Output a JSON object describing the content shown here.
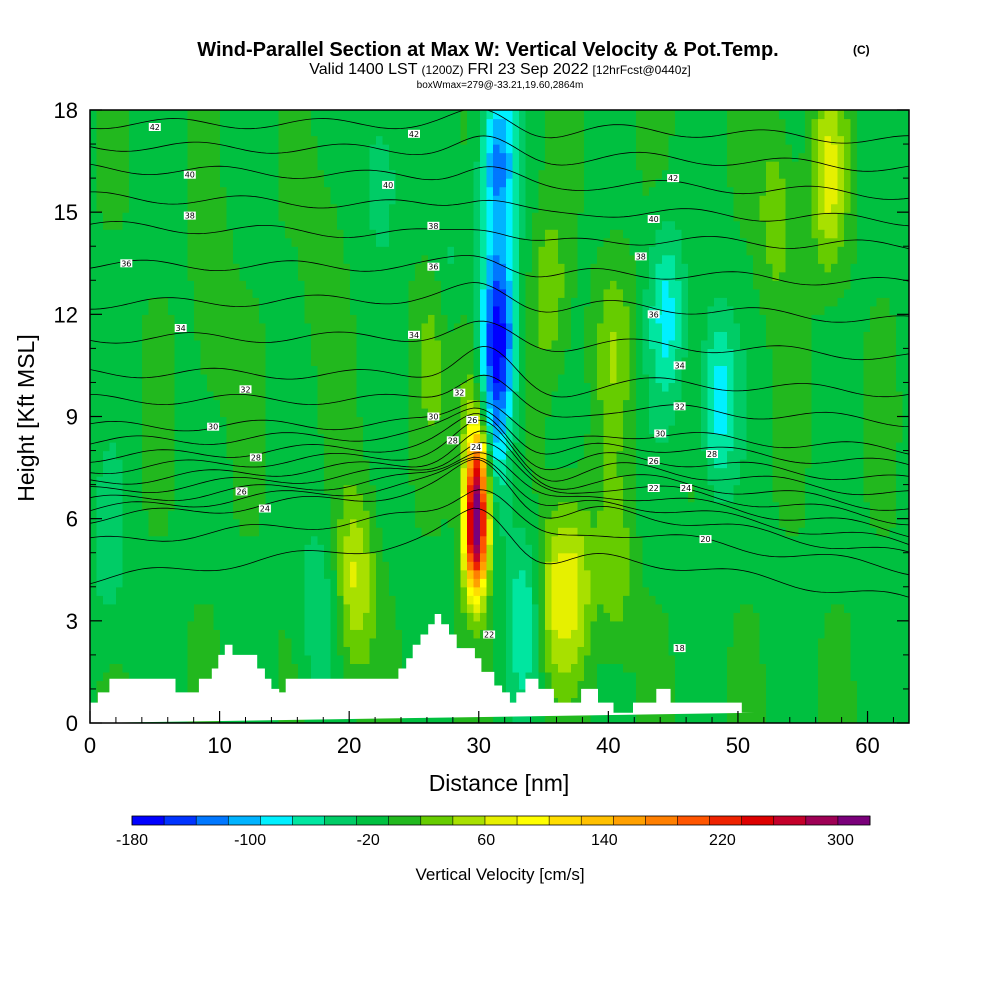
{
  "title": {
    "main": "Wind-Parallel Section at Max W: Vertical Velocity & Pot.Temp.",
    "suffix": "(C)",
    "sub_a": "Valid 1400 LST",
    "sub_b": "(1200Z)",
    "sub_c": "FRI 23 Sep 2022",
    "sub_d": "[12hrFcst@0440z]",
    "box": "boxWmax=279@-33.21,19.60,2864m"
  },
  "chart_data": {
    "type": "heatmap",
    "xlabel": "Distance [nm]",
    "ylabel": "Height [Kft MSL]",
    "xlim": [
      0,
      63.2
    ],
    "ylim": [
      0,
      18
    ],
    "x_ticks": [
      0,
      10,
      20,
      30,
      40,
      50,
      60
    ],
    "y_ticks": [
      0,
      3,
      6,
      9,
      12,
      15,
      18
    ],
    "x_tick_labels": [
      "0",
      "10",
      "20",
      "30",
      "40",
      "50",
      "60"
    ],
    "y_tick_labels": [
      "0",
      "3",
      "6",
      "9",
      "12",
      "15",
      "18"
    ],
    "field": "Vertical Velocity [cm/s]",
    "background_w": -10,
    "w_features": [
      {
        "x": 29.8,
        "z": 5.5,
        "w": 280
      },
      {
        "x": 29.9,
        "z": 7.5,
        "w": 180
      },
      {
        "x": 29.3,
        "z": 10.5,
        "w": 40
      },
      {
        "x": 31.5,
        "z": 11.5,
        "w": -150
      },
      {
        "x": 31.5,
        "z": 16.5,
        "w": -110
      },
      {
        "x": 31.2,
        "z": 8.5,
        "w": -70
      },
      {
        "x": 20.5,
        "z": 4.2,
        "w": 70
      },
      {
        "x": 35.8,
        "z": 3.8,
        "w": 60
      },
      {
        "x": 37.5,
        "z": 4.0,
        "w": 60
      },
      {
        "x": 40.5,
        "z": 4.5,
        "w": 40
      },
      {
        "x": 33.5,
        "z": 3.2,
        "w": -60
      },
      {
        "x": 44.5,
        "z": 12.0,
        "w": -70
      },
      {
        "x": 48.5,
        "z": 9.5,
        "w": -80
      },
      {
        "x": 35.5,
        "z": 12.5,
        "w": 40
      },
      {
        "x": 40.5,
        "z": 11.0,
        "w": 40
      },
      {
        "x": 57.0,
        "z": 16.0,
        "w": 70
      },
      {
        "x": 53.0,
        "z": 15.0,
        "w": 40
      },
      {
        "x": 9.5,
        "z": 12.0,
        "w": 25
      },
      {
        "x": 26.5,
        "z": 11.0,
        "w": 25
      },
      {
        "x": 18.0,
        "z": 13.5,
        "w": 20
      },
      {
        "x": 22.5,
        "z": 16.0,
        "w": -40
      },
      {
        "x": 28.0,
        "z": 13.0,
        "w": -30
      },
      {
        "x": 17.5,
        "z": 3.2,
        "w": -40
      },
      {
        "x": 1.5,
        "z": 5.0,
        "w": -35
      }
    ],
    "terrain": {
      "x": [
        0,
        0.6,
        0.6,
        1.5,
        1.5,
        6.6,
        6.6,
        8.4,
        8.4,
        9.4,
        9.4,
        9.9,
        9.9,
        10.4,
        10.4,
        11.0,
        11.0,
        12.9,
        12.9,
        13.5,
        13.5,
        14.0,
        14.0,
        14.6,
        14.6,
        15.1,
        15.1,
        23.8,
        23.8,
        24.4,
        24.4,
        24.9,
        24.9,
        25.5,
        25.5,
        26.1,
        26.1,
        26.6,
        26.6,
        27.1,
        27.1,
        27.7,
        27.7,
        28.3,
        28.3,
        29.7,
        29.7,
        30.2,
        30.2,
        31.2,
        31.2,
        31.8,
        31.8,
        32.4,
        32.4,
        32.9,
        32.9,
        33.6,
        33.6,
        34.6,
        34.6,
        35.8,
        35.8,
        37.9,
        37.9,
        39.2,
        39.2,
        40.4,
        40.4,
        41.9,
        41.9,
        43.7,
        43.7,
        44.8,
        44.8,
        50.3,
        50.3,
        51.3,
        51.3,
        52.2,
        52.2,
        63.2
      ],
      "z": [
        0.6,
        0.6,
        0.9,
        0.9,
        1.3,
        1.3,
        0.9,
        0.9,
        1.3,
        1.3,
        1.6,
        1.6,
        2.0,
        2.0,
        2.3,
        2.3,
        2.0,
        2.0,
        1.6,
        1.6,
        1.3,
        1.3,
        1.0,
        1.0,
        0.9,
        0.9,
        1.3,
        1.3,
        1.6,
        1.6,
        1.9,
        1.9,
        2.3,
        2.3,
        2.6,
        2.6,
        2.9,
        2.9,
        3.2,
        3.2,
        2.9,
        2.9,
        2.6,
        2.6,
        2.2,
        2.2,
        1.9,
        1.9,
        1.5,
        1.5,
        1.1,
        1.1,
        0.9,
        0.9,
        0.6,
        0.6,
        0.9,
        0.9,
        1.3,
        1.3,
        1.0,
        1.0,
        0.6,
        0.6,
        1.0,
        1.0,
        0.6,
        0.6,
        0.3,
        0.3,
        0.6,
        0.6,
        1.0,
        1.0,
        0.6,
        0.6,
        0.3,
        0.3,
        0.3
      ]
    },
    "potential_temperature_contours": [
      {
        "theta": 24,
        "z_left": 6.0,
        "z_mid": 6.9,
        "z_right": 4.9
      },
      {
        "theta": 26,
        "z_left": 6.5,
        "z_mid": 7.3,
        "z_right": 5.6
      },
      {
        "theta": 28,
        "z_left": 7.1,
        "z_mid": 7.7,
        "z_right": 6.3
      },
      {
        "theta": 30,
        "z_left": 7.8,
        "z_mid": 8.2,
        "z_right": 7.1
      },
      {
        "theta": 32,
        "z_left": 8.7,
        "z_mid": 8.8,
        "z_right": 8.0
      },
      {
        "theta": 34,
        "z_left": 10.3,
        "z_mid": 10.2,
        "z_right": 9.7
      },
      {
        "theta": 36,
        "z_left": 12.3,
        "z_mid": 12.5,
        "z_right": 11.8
      },
      {
        "theta": 38,
        "z_left": 14.6,
        "z_mid": 14.3,
        "z_right": 14.0
      },
      {
        "theta": 40,
        "z_left": 16.3,
        "z_mid": 16.0,
        "z_right": 15.5
      },
      {
        "theta": 42,
        "z_left": 17.6,
        "z_mid": 17.6,
        "z_right": 17.1
      }
    ],
    "contour_labels": [
      {
        "text": "42",
        "x": 5.0,
        "z": 17.5
      },
      {
        "text": "42",
        "x": 25.0,
        "z": 17.3
      },
      {
        "text": "42",
        "x": 45.0,
        "z": 16.0
      },
      {
        "text": "40",
        "x": 7.7,
        "z": 16.1
      },
      {
        "text": "40",
        "x": 23.0,
        "z": 15.8
      },
      {
        "text": "40",
        "x": 43.5,
        "z": 14.8
      },
      {
        "text": "38",
        "x": 7.7,
        "z": 14.9
      },
      {
        "text": "38",
        "x": 26.5,
        "z": 14.6
      },
      {
        "text": "38",
        "x": 42.5,
        "z": 13.7
      },
      {
        "text": "36",
        "x": 2.8,
        "z": 13.5
      },
      {
        "text": "36",
        "x": 26.5,
        "z": 13.4
      },
      {
        "text": "36",
        "x": 43.5,
        "z": 12.0
      },
      {
        "text": "34",
        "x": 7.0,
        "z": 11.6
      },
      {
        "text": "34",
        "x": 25.0,
        "z": 11.4
      },
      {
        "text": "34",
        "x": 45.5,
        "z": 10.5
      },
      {
        "text": "32",
        "x": 12.0,
        "z": 9.8
      },
      {
        "text": "32",
        "x": 28.5,
        "z": 9.7
      },
      {
        "text": "32",
        "x": 45.5,
        "z": 9.3
      },
      {
        "text": "30",
        "x": 9.5,
        "z": 8.7
      },
      {
        "text": "30",
        "x": 26.5,
        "z": 9.0
      },
      {
        "text": "30",
        "x": 44.0,
        "z": 8.5
      },
      {
        "text": "28",
        "x": 12.8,
        "z": 7.8
      },
      {
        "text": "28",
        "x": 28.0,
        "z": 8.3
      },
      {
        "text": "28",
        "x": 48.0,
        "z": 7.9
      },
      {
        "text": "26",
        "x": 11.7,
        "z": 6.8
      },
      {
        "text": "26",
        "x": 29.5,
        "z": 8.9
      },
      {
        "text": "26",
        "x": 43.5,
        "z": 7.7
      },
      {
        "text": "24",
        "x": 13.5,
        "z": 6.3
      },
      {
        "text": "24",
        "x": 29.8,
        "z": 8.1
      },
      {
        "text": "24",
        "x": 46.0,
        "z": 6.9
      },
      {
        "text": "22",
        "x": 43.5,
        "z": 6.9
      },
      {
        "text": "20",
        "x": 47.5,
        "z": 5.4
      },
      {
        "text": "22",
        "x": 30.8,
        "z": 2.6
      },
      {
        "text": "18",
        "x": 45.5,
        "z": 2.2
      }
    ],
    "colorbar": {
      "title": "Vertical Velocity [cm/s]",
      "min": -180,
      "max": 320,
      "tick_values": [
        -180,
        -100,
        -20,
        60,
        140,
        220,
        300
      ],
      "tick_labels": [
        "-180",
        "-100",
        "-20",
        "60",
        "140",
        "220",
        "300"
      ],
      "colors": [
        "#0000ff",
        "#0033ff",
        "#0077ff",
        "#00b3ff",
        "#00f0ff",
        "#00e6a0",
        "#00cc66",
        "#00c040",
        "#22b81e",
        "#66cc00",
        "#a8e000",
        "#e6f000",
        "#ffff00",
        "#ffdd00",
        "#ffc000",
        "#ffa000",
        "#ff7f00",
        "#ff5500",
        "#ee2200",
        "#dd0000",
        "#c4002a",
        "#9e0055",
        "#7a007a"
      ]
    }
  }
}
